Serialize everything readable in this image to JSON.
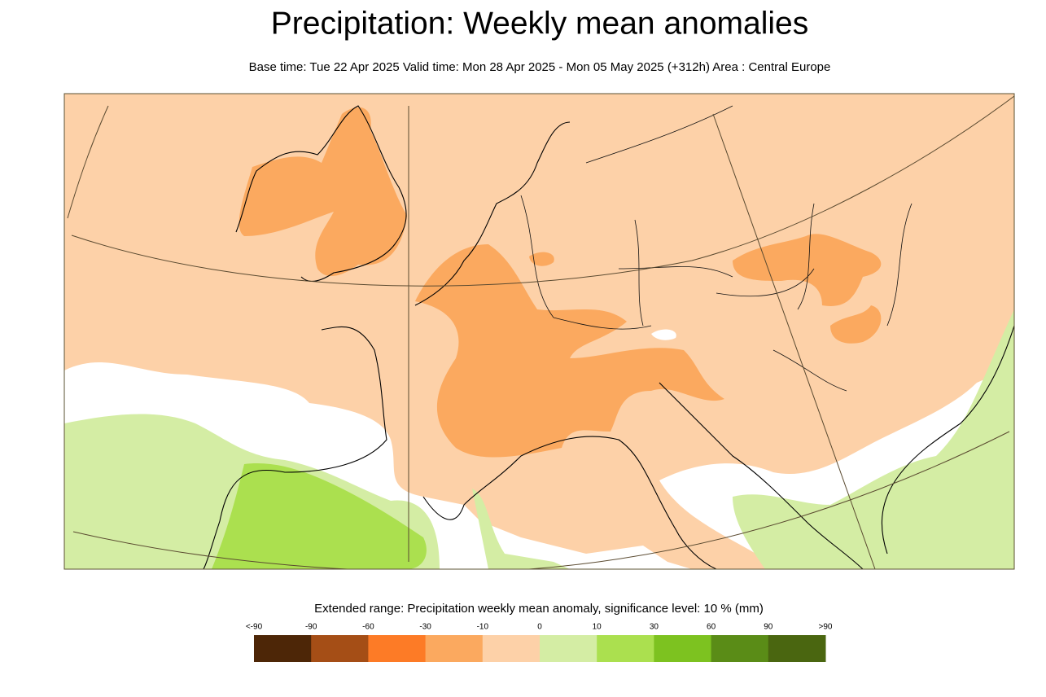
{
  "header": {
    "title": "Precipitation: Weekly mean anomalies",
    "subtitle": "Base time: Tue 22 Apr 2025 Valid time: Mon 28 Apr 2025 - Mon 05 May 2025 (+312h) Area : Central Europe"
  },
  "legend": {
    "title": "Extended range: Precipitation weekly mean anomaly, significance level: 10 % (mm)",
    "labels": [
      "<-90",
      "-90",
      "-60",
      "-30",
      "-10",
      "0",
      "10",
      "30",
      "60",
      "90",
      ">90"
    ],
    "colors": [
      "#4d2607",
      "#a54e16",
      "#fd7b26",
      "#fba95f",
      "#fdd1a8",
      "#d4eda4",
      "#abe04f",
      "#7dc220",
      "#5a8c17",
      "#4a6610"
    ]
  }
}
